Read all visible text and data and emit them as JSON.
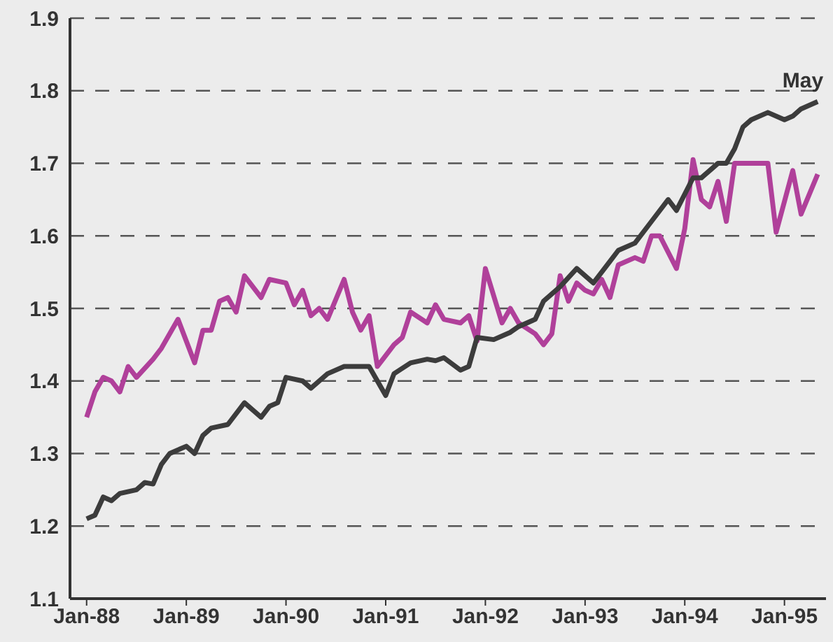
{
  "chart_data": {
    "type": "line",
    "xlim": [
      "1987-11",
      "1995-06"
    ],
    "ylim": [
      1.1,
      1.9
    ],
    "xticks": [
      {
        "value": "1988-01",
        "label": "Jan-88"
      },
      {
        "value": "1989-01",
        "label": "Jan-89"
      },
      {
        "value": "1990-01",
        "label": "Jan-90"
      },
      {
        "value": "1991-01",
        "label": "Jan-91"
      },
      {
        "value": "1992-01",
        "label": "Jan-92"
      },
      {
        "value": "1993-01",
        "label": "Jan-93"
      },
      {
        "value": "1994-01",
        "label": "Jan-94"
      },
      {
        "value": "1995-01",
        "label": "Jan-95"
      }
    ],
    "yticks": [
      1.1,
      1.2,
      1.3,
      1.4,
      1.5,
      1.6,
      1.7,
      1.8,
      1.9
    ],
    "grid": "y",
    "line_style": "solid",
    "annotations": [
      {
        "text": "May",
        "x": "1995-05",
        "y": 1.785
      }
    ],
    "series": [
      {
        "color": "#b0409a",
        "x": [
          "1988-01",
          "1988-02",
          "1988-03",
          "1988-04",
          "1988-05",
          "1988-06",
          "1988-07",
          "1988-09",
          "1988-10",
          "1988-12",
          "1989-02",
          "1989-03",
          "1989-04",
          "1989-05",
          "1989-06",
          "1989-07",
          "1989-08",
          "1989-10",
          "1989-11",
          "1990-01",
          "1990-02",
          "1990-03",
          "1990-04",
          "1990-05",
          "1990-06",
          "1990-08",
          "1990-09",
          "1990-10",
          "1990-11",
          "1990-12",
          "1991-02",
          "1991-03",
          "1991-04",
          "1991-06",
          "1991-07",
          "1991-08",
          "1991-10",
          "1991-11",
          "1991-12",
          "1992-01",
          "1992-03",
          "1992-04",
          "1992-05",
          "1992-07",
          "1992-08",
          "1992-09",
          "1992-10",
          "1992-11",
          "1992-12",
          "1993-01",
          "1993-02",
          "1993-03",
          "1993-04",
          "1993-05",
          "1993-07",
          "1993-08",
          "1993-09",
          "1993-10",
          "1993-12",
          "1994-01",
          "1994-02",
          "1994-03",
          "1994-04",
          "1994-05",
          "1994-06",
          "1994-07",
          "1994-09",
          "1994-11",
          "1994-12",
          "1995-02",
          "1995-03",
          "1995-05"
        ],
        "values": [
          1.35,
          1.385,
          1.405,
          1.4,
          1.385,
          1.42,
          1.405,
          1.43,
          1.445,
          1.485,
          1.425,
          1.47,
          1.47,
          1.51,
          1.515,
          1.495,
          1.545,
          1.515,
          1.54,
          1.535,
          1.505,
          1.525,
          1.49,
          1.5,
          1.485,
          1.54,
          1.495,
          1.47,
          1.49,
          1.42,
          1.45,
          1.46,
          1.495,
          1.48,
          1.505,
          1.485,
          1.48,
          1.49,
          1.455,
          1.555,
          1.48,
          1.5,
          1.48,
          1.465,
          1.45,
          1.465,
          1.545,
          1.51,
          1.535,
          1.525,
          1.52,
          1.54,
          1.515,
          1.56,
          1.57,
          1.565,
          1.6,
          1.6,
          1.555,
          1.61,
          1.705,
          1.65,
          1.64,
          1.675,
          1.62,
          1.7,
          1.7,
          1.7,
          1.605,
          1.69,
          1.63,
          1.685
        ]
      },
      {
        "color": "#3c3c3c",
        "x": [
          "1988-01",
          "1988-02",
          "1988-03",
          "1988-04",
          "1988-05",
          "1988-07",
          "1988-08",
          "1988-09",
          "1988-10",
          "1988-11",
          "1989-01",
          "1989-02",
          "1989-03",
          "1989-04",
          "1989-06",
          "1989-08",
          "1989-10",
          "1989-11",
          "1989-12",
          "1990-01",
          "1990-03",
          "1990-04",
          "1990-06",
          "1990-08",
          "1990-10",
          "1990-11",
          "1991-01",
          "1991-02",
          "1991-04",
          "1991-06",
          "1991-07",
          "1991-08",
          "1991-10",
          "1991-11",
          "1991-12",
          "1992-02",
          "1992-04",
          "1992-05",
          "1992-07",
          "1992-08",
          "1992-10",
          "1992-12",
          "1993-02",
          "1993-04",
          "1993-05",
          "1993-07",
          "1993-09",
          "1993-11",
          "1993-12",
          "1994-02",
          "1994-03",
          "1994-05",
          "1994-06",
          "1994-07",
          "1994-08",
          "1994-09",
          "1994-11",
          "1995-01",
          "1995-02",
          "1995-03",
          "1995-05"
        ],
        "values": [
          1.21,
          1.215,
          1.24,
          1.235,
          1.245,
          1.25,
          1.26,
          1.258,
          1.285,
          1.3,
          1.31,
          1.3,
          1.325,
          1.335,
          1.34,
          1.37,
          1.35,
          1.365,
          1.37,
          1.405,
          1.4,
          1.39,
          1.41,
          1.42,
          1.42,
          1.42,
          1.38,
          1.41,
          1.425,
          1.43,
          1.428,
          1.432,
          1.415,
          1.42,
          1.46,
          1.457,
          1.467,
          1.475,
          1.485,
          1.51,
          1.53,
          1.555,
          1.535,
          1.565,
          1.58,
          1.59,
          1.62,
          1.65,
          1.635,
          1.68,
          1.68,
          1.7,
          1.7,
          1.72,
          1.75,
          1.76,
          1.77,
          1.76,
          1.765,
          1.775,
          1.785
        ]
      }
    ]
  }
}
